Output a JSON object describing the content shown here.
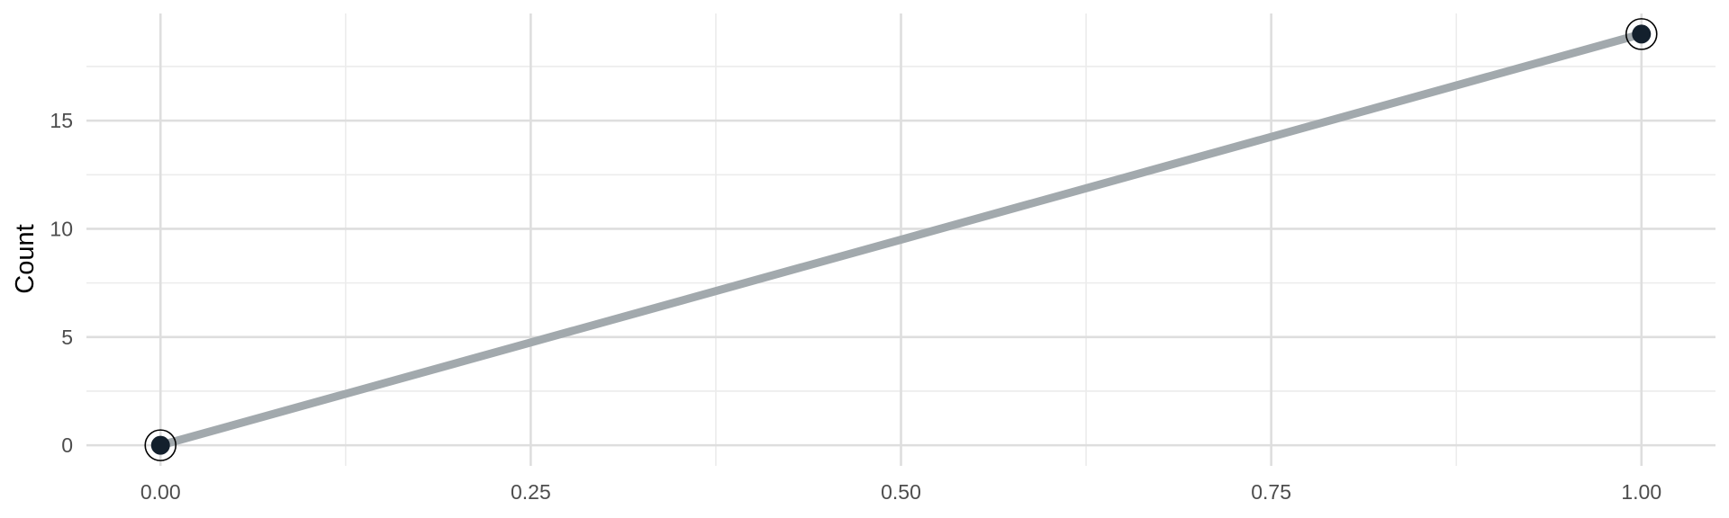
{
  "chart_data": {
    "type": "line",
    "title": "",
    "xlabel": "",
    "ylabel": "Count",
    "x": [
      0,
      1
    ],
    "series": [
      {
        "values": [
          0,
          19
        ]
      }
    ],
    "xlim": [
      -0.05,
      1.05
    ],
    "ylim": [
      -0.95,
      19.95
    ],
    "x_ticks": [
      0,
      0.25,
      0.5,
      0.75,
      1
    ],
    "x_tick_labels": [
      "0.00",
      "0.25",
      "0.50",
      "0.75",
      "1.00"
    ],
    "y_ticks": [
      0,
      5,
      10,
      15
    ],
    "y_tick_labels": [
      "0",
      "5",
      "10",
      "15"
    ],
    "x_minor_ticks": [
      0.125,
      0.375,
      0.625,
      0.875
    ],
    "y_minor_ticks": [
      2.5,
      7.5,
      12.5,
      17.5
    ],
    "grid": true,
    "legend": "none",
    "colors": {
      "line": "#a2a9ad",
      "point_fill": "#13202d",
      "point_ring": "#000000",
      "grid_major": "#dedede",
      "grid_minor": "#ececec"
    }
  }
}
